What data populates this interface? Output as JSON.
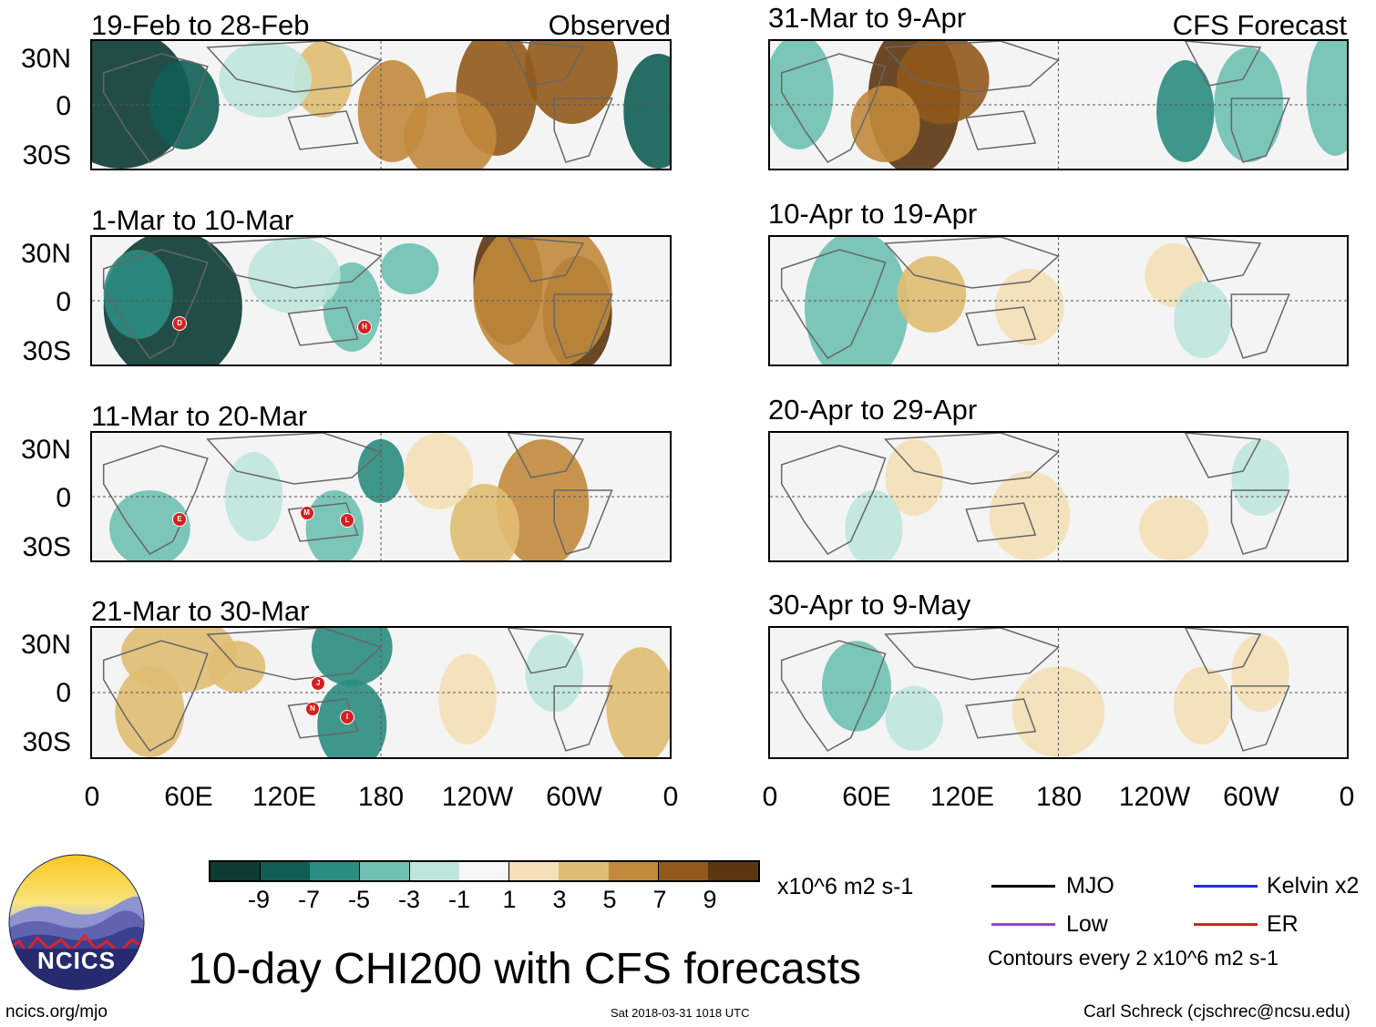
{
  "title": "10-day CHI200 with CFS forecasts",
  "observed_label": "Observed",
  "forecast_label": "CFS Forecast",
  "lat_labels": [
    "30N",
    "0",
    "30S"
  ],
  "lon_labels": [
    "0",
    "60E",
    "120E",
    "180",
    "120W",
    "60W",
    "0"
  ],
  "panels": {
    "p1": {
      "date": "19-Feb to 28-Feb"
    },
    "p2": {
      "date": "1-Mar to 10-Mar"
    },
    "p3": {
      "date": "11-Mar to 20-Mar"
    },
    "p4": {
      "date": "21-Mar to 30-Mar"
    },
    "p5": {
      "date": "31-Mar to 9-Apr"
    },
    "p6": {
      "date": "10-Apr to 19-Apr"
    },
    "p7": {
      "date": "20-Apr to 29-Apr"
    },
    "p8": {
      "date": "30-Apr to 9-May"
    }
  },
  "colorbar": {
    "labels": [
      "-9",
      "-7",
      "-5",
      "-3",
      "-1",
      "1",
      "3",
      "5",
      "7",
      "9"
    ],
    "colors": [
      "#0b3b33",
      "#0f5e54",
      "#2b8c80",
      "#6fc1b2",
      "#bfe6dd",
      "#f6f6f6",
      "#f3e0b6",
      "#e0bc72",
      "#c18a3c",
      "#91591b",
      "#5c3610"
    ],
    "units": "x10^6 m2 s-1"
  },
  "legend": {
    "mjo": {
      "label": "MJO",
      "color": "#000000"
    },
    "kelvin": {
      "label": "Kelvin x2",
      "color": "#1f2fd6"
    },
    "low": {
      "label": "Low",
      "color": "#9b3fd6"
    },
    "er": {
      "label": "ER",
      "color": "#d62020"
    },
    "contours_note": "Contours every 2 x10^6 m2 s-1"
  },
  "logo": {
    "text": "NCICS"
  },
  "footer": {
    "url": "ncics.org/mjo",
    "timestamp": "Sat 2018-03-31 1018 UTC",
    "credit": "Carl Schreck (cjschrec@ncsu.edu)"
  },
  "storms": {
    "p2": [
      "D",
      "H"
    ],
    "p3": [
      "E",
      "M",
      "L"
    ],
    "p4": [
      "J",
      "N",
      "I"
    ]
  }
}
